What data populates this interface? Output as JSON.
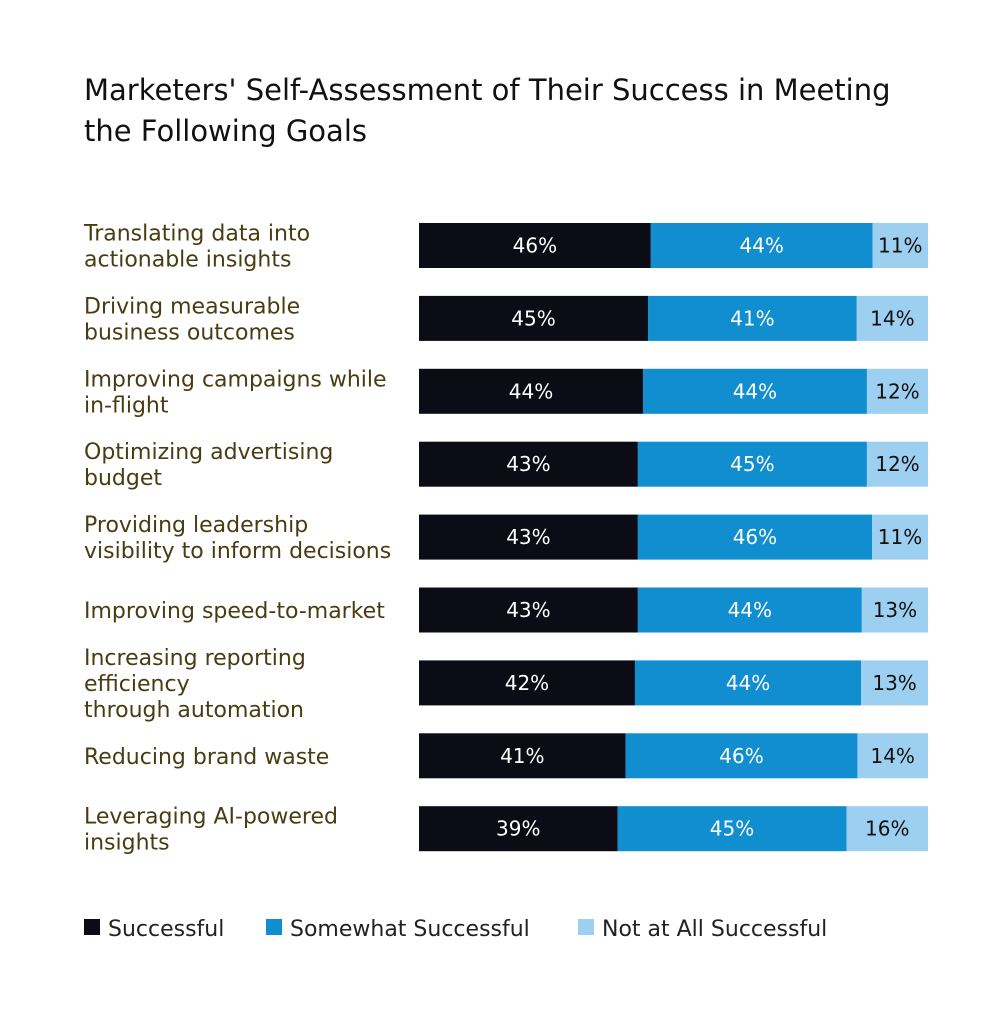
{
  "title": "Marketers' Self-Assessment of Their Success in Meeting\nthe Following Goals",
  "colors": {
    "successful": "#0c0c16",
    "somewhat": "#108ecf",
    "not_at_all": "#9ccff0",
    "label_text": "#4a3c12"
  },
  "chart_data": {
    "type": "bar",
    "orientation": "horizontal",
    "stacked": "100%",
    "title": "Marketers' Self-Assessment of Their Success in Meeting the Following Goals",
    "categories": [
      [
        "Translating data into",
        "actionable insights"
      ],
      [
        "Driving measurable",
        "business outcomes"
      ],
      [
        "Improving campaigns while",
        "in-flight"
      ],
      [
        "Optimizing advertising",
        "budget"
      ],
      [
        "Providing leadership",
        "visibility to inform decisions"
      ],
      [
        "Improving speed-to-market"
      ],
      [
        "Increasing reporting",
        "efficiency",
        "through automation"
      ],
      [
        "Reducing brand waste"
      ],
      [
        "Leveraging AI-powered",
        "insights"
      ]
    ],
    "series": [
      {
        "name": "Successful",
        "color": "#0c0c16",
        "label_color": "#ffffff",
        "values": [
          46,
          45,
          44,
          43,
          43,
          43,
          42,
          41,
          39
        ]
      },
      {
        "name": "Somewhat Successful",
        "color": "#108ecf",
        "label_color": "#ffffff",
        "values": [
          44,
          41,
          44,
          45,
          46,
          44,
          44,
          46,
          45
        ]
      },
      {
        "name": "Not at All Successful",
        "color": "#9ccff0",
        "label_color": "#111111",
        "values": [
          11,
          14,
          12,
          12,
          11,
          13,
          13,
          14,
          16
        ]
      }
    ],
    "value_suffix": "%",
    "legend_position": "bottom-left",
    "grid": false
  }
}
